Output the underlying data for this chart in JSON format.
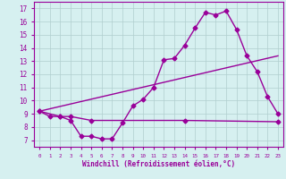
{
  "line1_x": [
    0,
    1,
    2,
    3,
    4,
    5,
    6,
    7,
    8,
    9,
    10,
    11,
    12,
    13,
    14,
    15,
    16,
    17,
    18,
    19,
    20,
    21,
    22,
    23
  ],
  "line1_y": [
    9.2,
    8.8,
    8.8,
    8.5,
    7.3,
    7.3,
    7.1,
    7.1,
    8.3,
    9.6,
    10.1,
    11.0,
    13.1,
    13.2,
    14.2,
    15.5,
    16.7,
    16.5,
    16.8,
    15.4,
    13.4,
    12.2,
    10.3,
    9.0
  ],
  "line2_x": [
    0,
    2,
    3,
    5,
    14,
    23
  ],
  "line2_y": [
    9.2,
    8.8,
    8.8,
    8.5,
    8.5,
    8.4
  ],
  "line3_x": [
    0,
    23
  ],
  "line3_y": [
    9.2,
    13.4
  ],
  "color": "#990099",
  "bg_color": "#d6f0f0",
  "grid_color": "#b0cece",
  "xlabel": "Windchill (Refroidissement éolien,°C)",
  "xlim": [
    -0.5,
    23.5
  ],
  "ylim": [
    6.5,
    17.5
  ],
  "yticks": [
    7,
    8,
    9,
    10,
    11,
    12,
    13,
    14,
    15,
    16,
    17
  ],
  "xticks": [
    0,
    1,
    2,
    3,
    4,
    5,
    6,
    7,
    8,
    9,
    10,
    11,
    12,
    13,
    14,
    15,
    16,
    17,
    18,
    19,
    20,
    21,
    22,
    23
  ],
  "marker": "D",
  "markersize": 2.5,
  "linewidth": 1.0
}
